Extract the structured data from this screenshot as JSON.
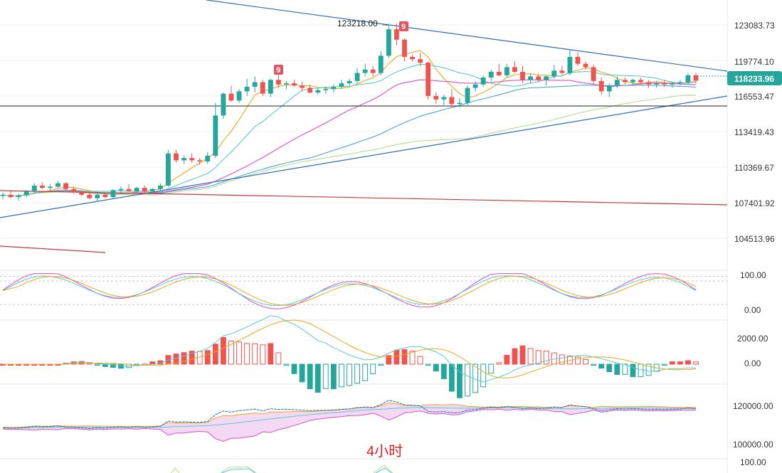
{
  "chart_data": {
    "type": "candlestick",
    "interval_label": "4小时",
    "colors": {
      "up": "#26a69a",
      "down": "#ef5350",
      "ma_fast": "#e9a81e",
      "ma_mid": "#5bc8d6",
      "ma_slow": "#d651c4",
      "ma_long1": "#4aa3d6",
      "ma_long2": "#b5dd8f",
      "trendline": "#2f6fb0",
      "resistance_red": "#c23b3b",
      "hline": "#222222",
      "badge": "#e05561",
      "current_price_bg": "#26a69a"
    },
    "price_axis": {
      "ticks": [
        "123083.73",
        "119774.10",
        "116553.47",
        "113419.43",
        "110369.67",
        "107401.92",
        "104513.96"
      ],
      "current_price": "118233.96"
    },
    "annotations": {
      "high_label": "123218.00",
      "high_arrow": "→",
      "td_badge_1": "9",
      "td_badge_2": "9"
    },
    "candles": [
      [
        108200,
        108500,
        107900,
        108300
      ],
      [
        108300,
        108600,
        108000,
        108100
      ],
      [
        108100,
        108400,
        107800,
        108250
      ],
      [
        108250,
        108700,
        108100,
        108600
      ],
      [
        108600,
        109300,
        108500,
        109100
      ],
      [
        109100,
        109400,
        108800,
        108900
      ],
      [
        108900,
        109200,
        108600,
        109000
      ],
      [
        109000,
        109500,
        108900,
        109300
      ],
      [
        109300,
        109400,
        108700,
        108800
      ],
      [
        108800,
        109000,
        108400,
        108500
      ],
      [
        108500,
        108700,
        108200,
        108300
      ],
      [
        108300,
        108600,
        107900,
        108000
      ],
      [
        108000,
        108400,
        107700,
        108300
      ],
      [
        108300,
        108500,
        108000,
        108100
      ],
      [
        108100,
        108800,
        108000,
        108700
      ],
      [
        108700,
        109000,
        108500,
        108800
      ],
      [
        108800,
        109200,
        108600,
        108600
      ],
      [
        108600,
        109000,
        108400,
        108900
      ],
      [
        108900,
        109100,
        108500,
        108600
      ],
      [
        108600,
        108900,
        108400,
        108800
      ],
      [
        108800,
        109300,
        108600,
        109100
      ],
      [
        109100,
        112200,
        109000,
        111900
      ],
      [
        111900,
        112200,
        111100,
        111300
      ],
      [
        111300,
        111700,
        111000,
        111500
      ],
      [
        111500,
        111900,
        111100,
        111300
      ],
      [
        111300,
        111500,
        110900,
        111200
      ],
      [
        111200,
        112000,
        111000,
        111700
      ],
      [
        111700,
        116300,
        111500,
        115200
      ],
      [
        115200,
        117200,
        114900,
        117100
      ],
      [
        117100,
        117800,
        116400,
        116500
      ],
      [
        116500,
        117500,
        116300,
        117300
      ],
      [
        117300,
        118400,
        116900,
        117700
      ],
      [
        117700,
        118600,
        117200,
        118100
      ],
      [
        118100,
        118300,
        116900,
        117100
      ],
      [
        117100,
        118400,
        116800,
        118300
      ],
      [
        118300,
        118700,
        117600,
        117900
      ],
      [
        117900,
        118200,
        117500,
        118000
      ],
      [
        118000,
        118300,
        117700,
        117800
      ],
      [
        117800,
        118100,
        117300,
        117600
      ],
      [
        117600,
        117900,
        117100,
        117200
      ],
      [
        117200,
        117600,
        117000,
        117400
      ],
      [
        117400,
        117700,
        117100,
        117500
      ],
      [
        117500,
        117900,
        117200,
        117700
      ],
      [
        117700,
        118300,
        117500,
        118000
      ],
      [
        118000,
        118400,
        117800,
        118200
      ],
      [
        118200,
        119300,
        118000,
        118900
      ],
      [
        118900,
        119700,
        118600,
        119200
      ],
      [
        119200,
        119500,
        118600,
        118900
      ],
      [
        118900,
        120800,
        118700,
        120400
      ],
      [
        120400,
        123200,
        120200,
        122700
      ],
      [
        122700,
        123218,
        121300,
        121800
      ],
      [
        121800,
        121900,
        119900,
        120300
      ],
      [
        120300,
        120500,
        119900,
        120100
      ],
      [
        120100,
        120600,
        119500,
        119800
      ],
      [
        119800,
        119900,
        116600,
        116900
      ],
      [
        116900,
        117200,
        116200,
        116600
      ],
      [
        116600,
        117000,
        116100,
        116800
      ],
      [
        116800,
        117500,
        115900,
        116200
      ],
      [
        116200,
        116700,
        115900,
        116300
      ],
      [
        116300,
        117800,
        116100,
        117600
      ],
      [
        117600,
        118200,
        117300,
        117900
      ],
      [
        117900,
        118700,
        117700,
        118500
      ],
      [
        118500,
        119200,
        118200,
        119000
      ],
      [
        119000,
        119700,
        118600,
        118700
      ],
      [
        118700,
        119700,
        118500,
        119400
      ],
      [
        119400,
        119900,
        118900,
        119000
      ],
      [
        119000,
        119500,
        118000,
        118300
      ],
      [
        118300,
        118800,
        118000,
        118600
      ],
      [
        118600,
        118800,
        118100,
        118300
      ],
      [
        118300,
        118700,
        117800,
        118600
      ],
      [
        118600,
        119600,
        118400,
        119100
      ],
      [
        119100,
        119500,
        118800,
        118900
      ],
      [
        118900,
        120900,
        118700,
        120300
      ],
      [
        120300,
        120700,
        119500,
        119700
      ],
      [
        119700,
        119900,
        119200,
        119400
      ],
      [
        119400,
        119600,
        117900,
        118200
      ],
      [
        118200,
        118500,
        117000,
        117300
      ],
      [
        117300,
        118000,
        116800,
        117800
      ],
      [
        117800,
        118600,
        117600,
        118300
      ],
      [
        118300,
        118500,
        117900,
        118100
      ],
      [
        118100,
        118400,
        117800,
        118300
      ],
      [
        118300,
        118500,
        117900,
        118100
      ],
      [
        118100,
        118300,
        117600,
        117900
      ],
      [
        117900,
        118200,
        117600,
        118000
      ],
      [
        118000,
        118300,
        117700,
        117900
      ],
      [
        117900,
        118100,
        117600,
        118000
      ],
      [
        118000,
        118300,
        117800,
        118100
      ],
      [
        118100,
        118900,
        117900,
        118700
      ],
      [
        118700,
        118900,
        118000,
        118234
      ]
    ],
    "oscillator": {
      "ticks": [
        "100.00",
        "0.00"
      ],
      "upper": 100,
      "lower": 0
    },
    "macd": {
      "ticks": [
        "2000.00",
        "0.00"
      ]
    },
    "bottom_panel": {
      "ticks": [
        "120000.00",
        "100000.00"
      ]
    },
    "fourth_panel_ticks": [
      "100.00"
    ]
  }
}
